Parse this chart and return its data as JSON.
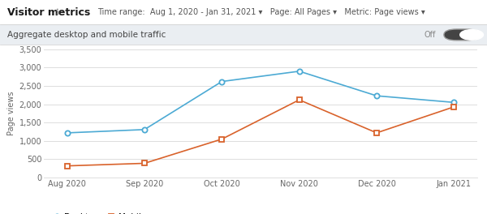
{
  "title": "Visitor metrics",
  "title_icon": "ℹ",
  "header_text": "Time range:  Aug 1, 2020 - Jan 31, 2021 ▾   Page: All Pages ▾   Metric: Page views ▾",
  "subtitle": "Aggregate desktop and mobile traffic",
  "toggle_text": "Off",
  "ylabel": "Page views",
  "x_labels": [
    "Aug 2020",
    "Sep 2020",
    "Oct 2020",
    "Nov 2020",
    "Dec 2020",
    "Jan 2021"
  ],
  "desktop_values": [
    1220,
    1310,
    2620,
    2900,
    2230,
    2050
  ],
  "mobile_values": [
    320,
    390,
    1050,
    2120,
    1220,
    1930
  ],
  "ylim": [
    0,
    3500
  ],
  "yticks": [
    0,
    500,
    1000,
    1500,
    2000,
    2500,
    3000,
    3500
  ],
  "ytick_labels": [
    "0",
    "500",
    "1,000",
    "1,500",
    "2,000",
    "2,500",
    "3,000",
    "3,500"
  ],
  "desktop_color": "#4CAAD4",
  "mobile_color": "#D9622B",
  "bg_color": "#FFFFFF",
  "header_bg": "#EAEEF2",
  "grid_color": "#D8D8D8",
  "sep_color": "#CCCCCC",
  "title_fontsize": 9,
  "header_fontsize": 7,
  "subtitle_fontsize": 7.5,
  "axis_label_fontsize": 7,
  "tick_fontsize": 7,
  "legend_fontsize": 7.5
}
